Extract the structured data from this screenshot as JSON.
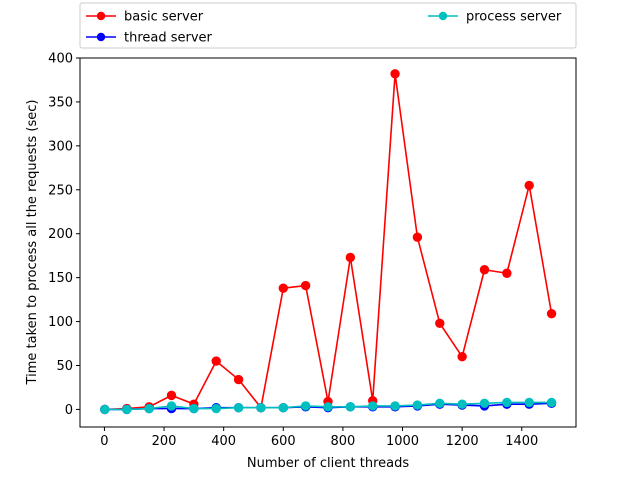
{
  "chart_data": {
    "type": "line",
    "xlabel": "Number of client threads",
    "ylabel": "Time taken to process all the requests (sec)",
    "xlim": [
      -82,
      1582
    ],
    "ylim": [
      -20,
      400
    ],
    "xticks": [
      0,
      200,
      400,
      600,
      800,
      1000,
      1200,
      1400
    ],
    "yticks": [
      0,
      50,
      100,
      150,
      200,
      250,
      300,
      350,
      400
    ],
    "grid": false,
    "legend_placement": "above-plot, two columns",
    "x": [
      1,
      75,
      150,
      225,
      300,
      375,
      450,
      525,
      600,
      675,
      750,
      825,
      900,
      975,
      1050,
      1125,
      1200,
      1275,
      1350,
      1425,
      1500
    ],
    "series": [
      {
        "name": "basic server",
        "color": "#ff0000",
        "values": [
          0,
          1,
          3,
          16,
          6,
          55,
          34,
          2,
          138,
          141,
          9,
          173,
          10,
          382,
          196,
          98,
          60,
          159,
          155,
          255,
          109
        ]
      },
      {
        "name": "thread server",
        "color": "#0000ff",
        "values": [
          0,
          0,
          1,
          1,
          1,
          2,
          2,
          2,
          2,
          3,
          2,
          3,
          3,
          3,
          4,
          6,
          5,
          4,
          6,
          6,
          7
        ]
      },
      {
        "name": "process server",
        "color": "#00bfbf",
        "values": [
          0,
          0,
          1,
          4,
          1,
          1,
          2,
          2,
          2,
          4,
          3,
          3,
          4,
          4,
          5,
          7,
          6,
          7,
          8,
          8,
          8
        ]
      }
    ]
  }
}
